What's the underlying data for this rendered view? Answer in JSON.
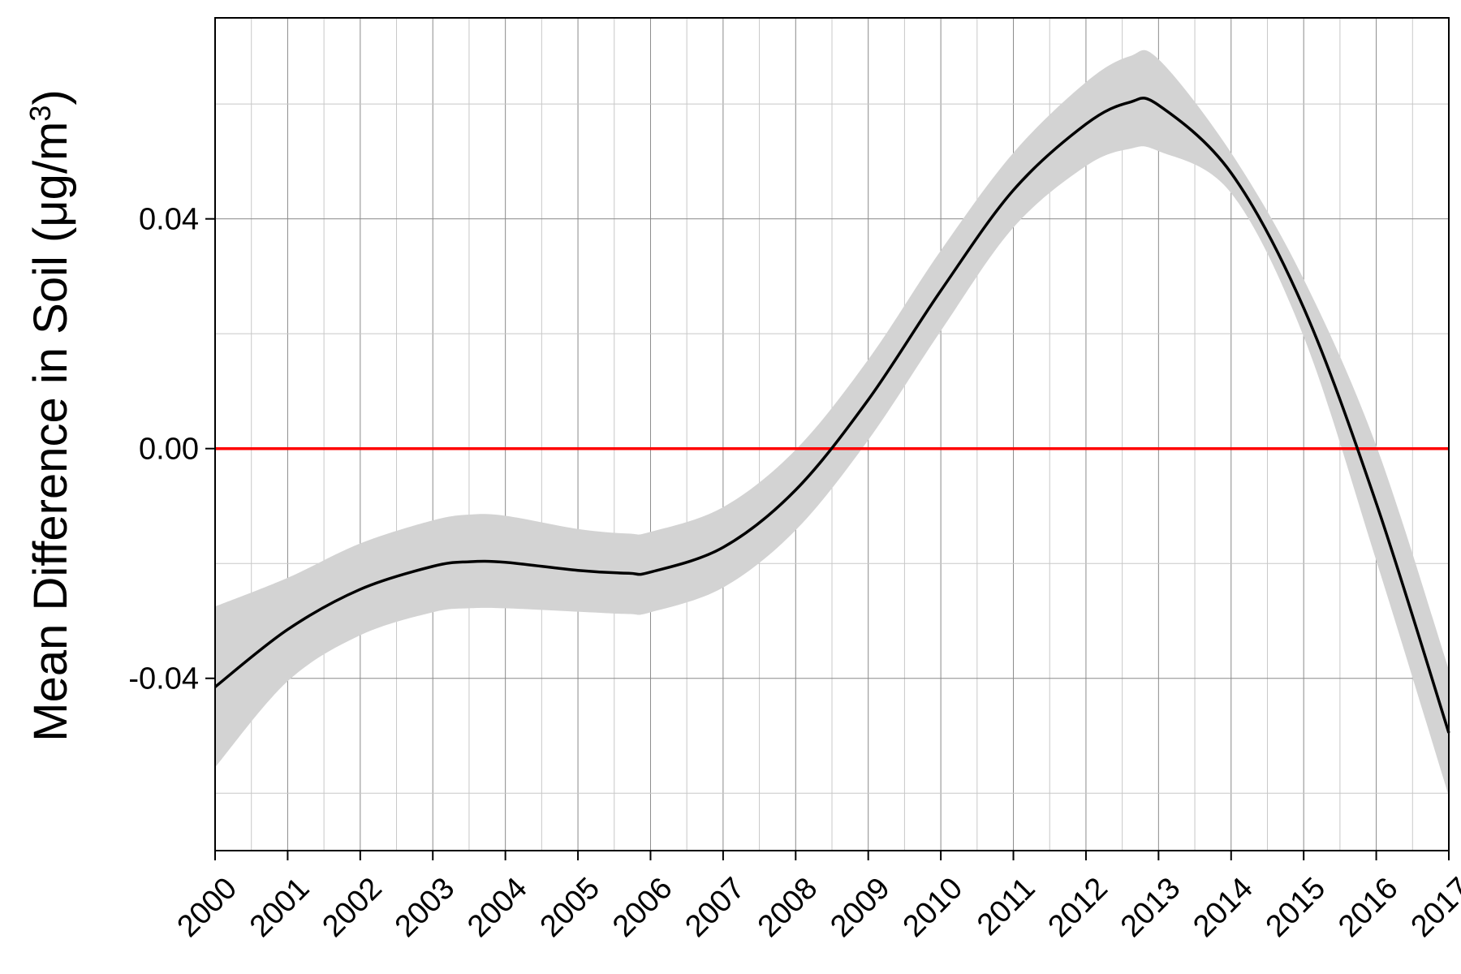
{
  "chart_data": {
    "type": "line",
    "title": "",
    "xlabel": "",
    "ylabel_prefix": "Mean Difference in Soil (",
    "ylabel_unit": "μg/m",
    "ylabel_superscript": "3",
    "ylabel_suffix": ")",
    "xlim": [
      2000,
      2017
    ],
    "ylim": [
      -0.07,
      0.075
    ],
    "x_ticks": [
      2000,
      2001,
      2002,
      2003,
      2004,
      2005,
      2006,
      2007,
      2008,
      2009,
      2010,
      2011,
      2012,
      2013,
      2014,
      2015,
      2016,
      2017
    ],
    "x_tick_labels": [
      "2000",
      "2001",
      "2002",
      "2003",
      "2004",
      "2005",
      "2006",
      "2007",
      "2008",
      "2009",
      "2010",
      "2011",
      "2012",
      "2013",
      "2014",
      "2015",
      "2016",
      "2017"
    ],
    "y_ticks": [
      -0.04,
      0.0,
      0.04
    ],
    "y_tick_labels": [
      "-0.04",
      "0.00",
      "0.04"
    ],
    "grid": true,
    "reference_line": {
      "y": 0.0,
      "color": "#ff0000"
    },
    "series": [
      {
        "x": [
          2000,
          2001,
          2002,
          2003,
          2003.5,
          2004,
          2005,
          2005.7,
          2006,
          2007,
          2008,
          2009,
          2010,
          2011,
          2012,
          2012.6,
          2013,
          2014,
          2015,
          2016,
          2017
        ],
        "y": [
          -0.0415,
          -0.0315,
          -0.0245,
          -0.0205,
          -0.0197,
          -0.0198,
          -0.0212,
          -0.0217,
          -0.0215,
          -0.0172,
          -0.0072,
          0.0085,
          0.0275,
          0.045,
          0.0565,
          0.0603,
          0.0598,
          0.048,
          0.0245,
          -0.0095,
          -0.0495
        ],
        "lower": [
          -0.0555,
          -0.0405,
          -0.0325,
          -0.0285,
          -0.0278,
          -0.0278,
          -0.0284,
          -0.0288,
          -0.0285,
          -0.0242,
          -0.0142,
          0.0015,
          0.0205,
          0.0385,
          0.0492,
          0.0522,
          0.0518,
          0.0445,
          0.0195,
          -0.0195,
          -0.0605
        ],
        "upper": [
          -0.0275,
          -0.0225,
          -0.0165,
          -0.0125,
          -0.0115,
          -0.0117,
          -0.014,
          -0.0148,
          -0.0145,
          -0.0102,
          -0.0002,
          0.0155,
          0.0345,
          0.0515,
          0.0638,
          0.0683,
          0.0678,
          0.0515,
          0.0295,
          0.0005,
          -0.0385
        ],
        "color": "#000000",
        "band_color": "#d3d3d3"
      }
    ]
  }
}
